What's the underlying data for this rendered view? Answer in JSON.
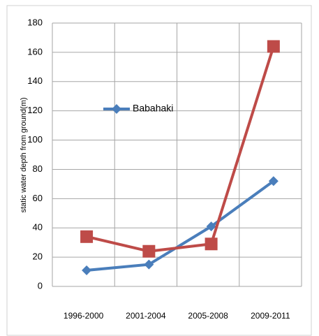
{
  "chart_data": {
    "type": "line",
    "y_label": "static water depth from ground(m)",
    "categories": [
      "1996-2000",
      "2001-2004",
      "2005-2008",
      "2009-2011"
    ],
    "series": [
      {
        "name": "Babahaki",
        "color": "#4a7ebb",
        "marker": "diamond",
        "values": [
          11,
          15,
          41,
          72
        ]
      },
      {
        "color": "#be4b48",
        "marker": "square",
        "values": [
          34,
          24,
          29,
          164
        ]
      }
    ],
    "ylim": [
      0,
      180
    ],
    "yticks": [
      0,
      20,
      40,
      60,
      80,
      100,
      120,
      140,
      160,
      180
    ],
    "grid": true
  }
}
